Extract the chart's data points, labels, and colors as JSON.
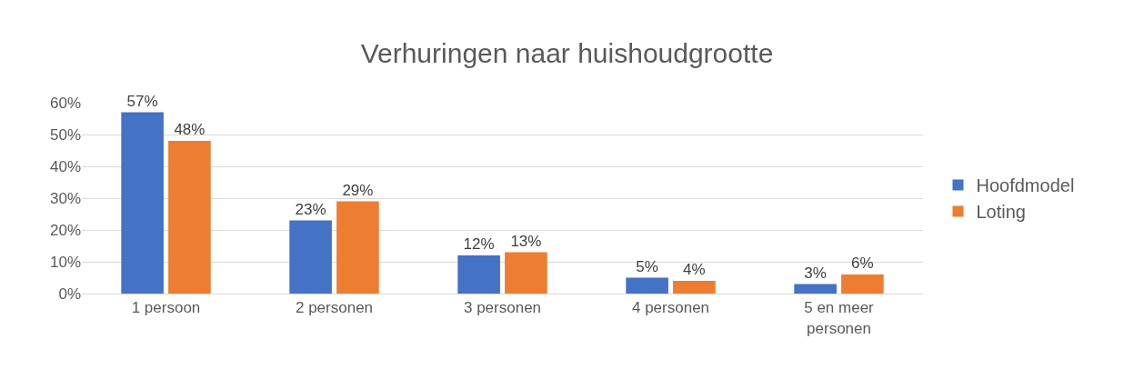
{
  "chart_data": {
    "type": "bar",
    "title": "Verhuringen naar huishoudgrootte",
    "categories": [
      "1 persoon",
      "2 personen",
      "3 personen",
      "4 personen",
      "5 en meer personen"
    ],
    "series": [
      {
        "name": "Hoofdmodel",
        "color": "#4472c4",
        "values": [
          57,
          23,
          12,
          5,
          3
        ],
        "value_labels": [
          "57%",
          "23%",
          "12%",
          "5%",
          "3%"
        ]
      },
      {
        "name": "Loting",
        "color": "#ed7d31",
        "values": [
          48,
          29,
          13,
          4,
          6
        ],
        "value_labels": [
          "48%",
          "29%",
          "13%",
          "4%",
          "6%"
        ]
      }
    ],
    "ylim": [
      0,
      60
    ],
    "yticks": [
      {
        "value": 0,
        "label": "0%"
      },
      {
        "value": 10,
        "label": "10%"
      },
      {
        "value": 20,
        "label": "20%"
      },
      {
        "value": 30,
        "label": "30%"
      },
      {
        "value": 40,
        "label": "40%"
      },
      {
        "value": 50,
        "label": "50%"
      },
      {
        "value": 60,
        "label": "60%"
      }
    ],
    "grid": "y",
    "legend": "right"
  }
}
